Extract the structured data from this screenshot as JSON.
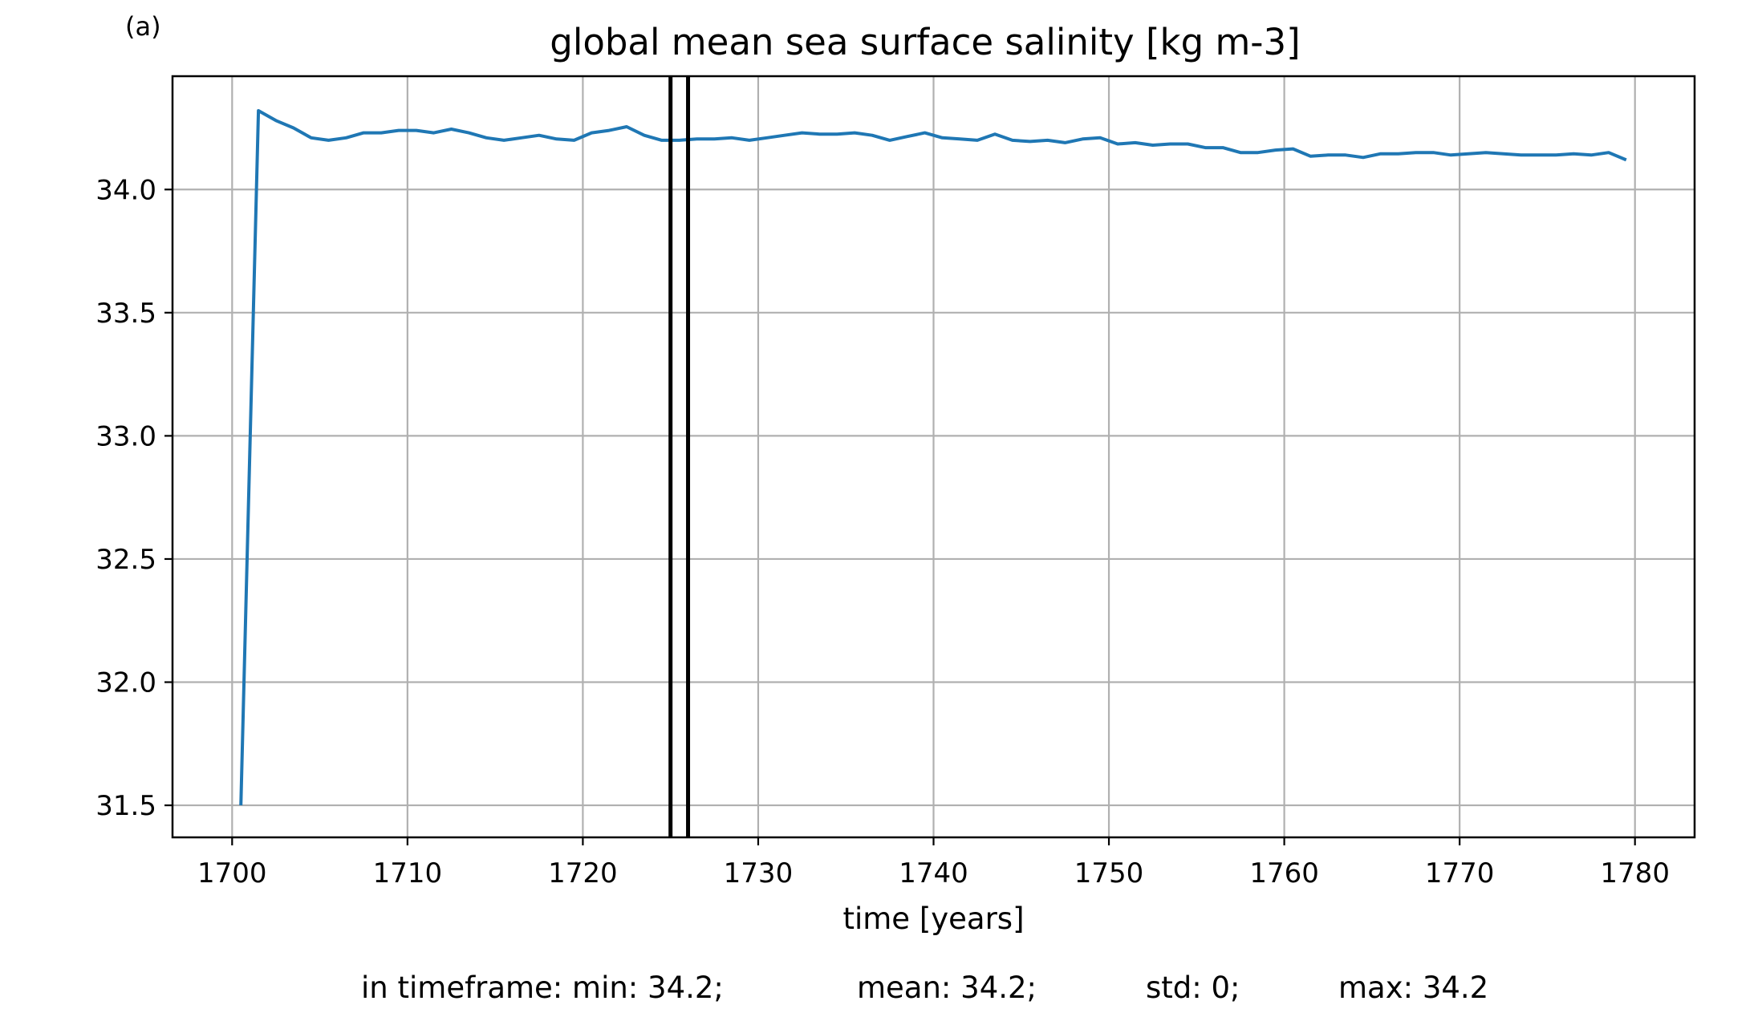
{
  "panel_label": "(a)",
  "chart_data": {
    "type": "line",
    "title": "global mean sea surface salinity [kg m-3]",
    "xlabel": "time [years]",
    "ylabel": "",
    "xlim": [
      1696.6,
      1783.4
    ],
    "ylim": [
      31.37,
      34.46
    ],
    "xticks": [
      1700,
      1710,
      1720,
      1730,
      1740,
      1750,
      1760,
      1770,
      1780
    ],
    "xtick_labels": [
      "1700",
      "1710",
      "1720",
      "1730",
      "1740",
      "1750",
      "1760",
      "1770",
      "1780"
    ],
    "yticks": [
      31.5,
      32.0,
      32.5,
      33.0,
      33.5,
      34.0
    ],
    "ytick_labels": [
      "31.5",
      "32.0",
      "32.5",
      "33.0",
      "33.5",
      "34.0"
    ],
    "grid": true,
    "series": [
      {
        "color": "#1f77b4",
        "x": [
          1700.5,
          1701.5,
          1702.5,
          1703.5,
          1704.5,
          1705.5,
          1706.5,
          1707.5,
          1708.5,
          1709.5,
          1710.5,
          1711.5,
          1712.5,
          1713.5,
          1714.5,
          1715.5,
          1716.5,
          1717.5,
          1718.5,
          1719.5,
          1720.5,
          1721.5,
          1722.5,
          1723.5,
          1724.5,
          1725.5,
          1726.5,
          1727.5,
          1728.5,
          1729.5,
          1730.5,
          1731.5,
          1732.5,
          1733.5,
          1734.5,
          1735.5,
          1736.5,
          1737.5,
          1738.5,
          1739.5,
          1740.5,
          1741.5,
          1742.5,
          1743.5,
          1744.5,
          1745.5,
          1746.5,
          1747.5,
          1748.5,
          1749.5,
          1750.5,
          1751.5,
          1752.5,
          1753.5,
          1754.5,
          1755.5,
          1756.5,
          1757.5,
          1758.5,
          1759.5,
          1760.5,
          1761.5,
          1762.5,
          1763.5,
          1764.5,
          1765.5,
          1766.5,
          1767.5,
          1768.5,
          1769.5,
          1770.5,
          1771.5,
          1772.5,
          1773.5,
          1774.5,
          1775.5,
          1776.5,
          1777.5,
          1778.5,
          1779.5
        ],
        "y": [
          31.5,
          34.32,
          34.28,
          34.25,
          34.21,
          34.2,
          34.21,
          34.23,
          34.23,
          34.24,
          34.24,
          34.23,
          34.245,
          34.23,
          34.21,
          34.2,
          34.21,
          34.22,
          34.205,
          34.2,
          34.23,
          34.24,
          34.255,
          34.22,
          34.2,
          34.2,
          34.205,
          34.205,
          34.21,
          34.2,
          34.21,
          34.22,
          34.23,
          34.225,
          34.225,
          34.23,
          34.22,
          34.2,
          34.215,
          34.23,
          34.21,
          34.205,
          34.2,
          34.225,
          34.2,
          34.195,
          34.2,
          34.19,
          34.205,
          34.21,
          34.185,
          34.19,
          34.18,
          34.185,
          34.185,
          34.17,
          34.17,
          34.15,
          34.15,
          34.16,
          34.165,
          34.135,
          34.14,
          34.14,
          34.13,
          34.145,
          34.145,
          34.15,
          34.15,
          34.14,
          34.145,
          34.15,
          34.145,
          34.14,
          34.14,
          34.14,
          34.145,
          34.14,
          34.15,
          34.12
        ]
      }
    ],
    "vlines": {
      "color": "#000000",
      "x": [
        1725.0,
        1726.0
      ]
    }
  },
  "footer": {
    "min": "in timeframe: min: 34.2;",
    "mean": "mean: 34.2;",
    "std": "std: 0;",
    "max": "max: 34.2"
  }
}
